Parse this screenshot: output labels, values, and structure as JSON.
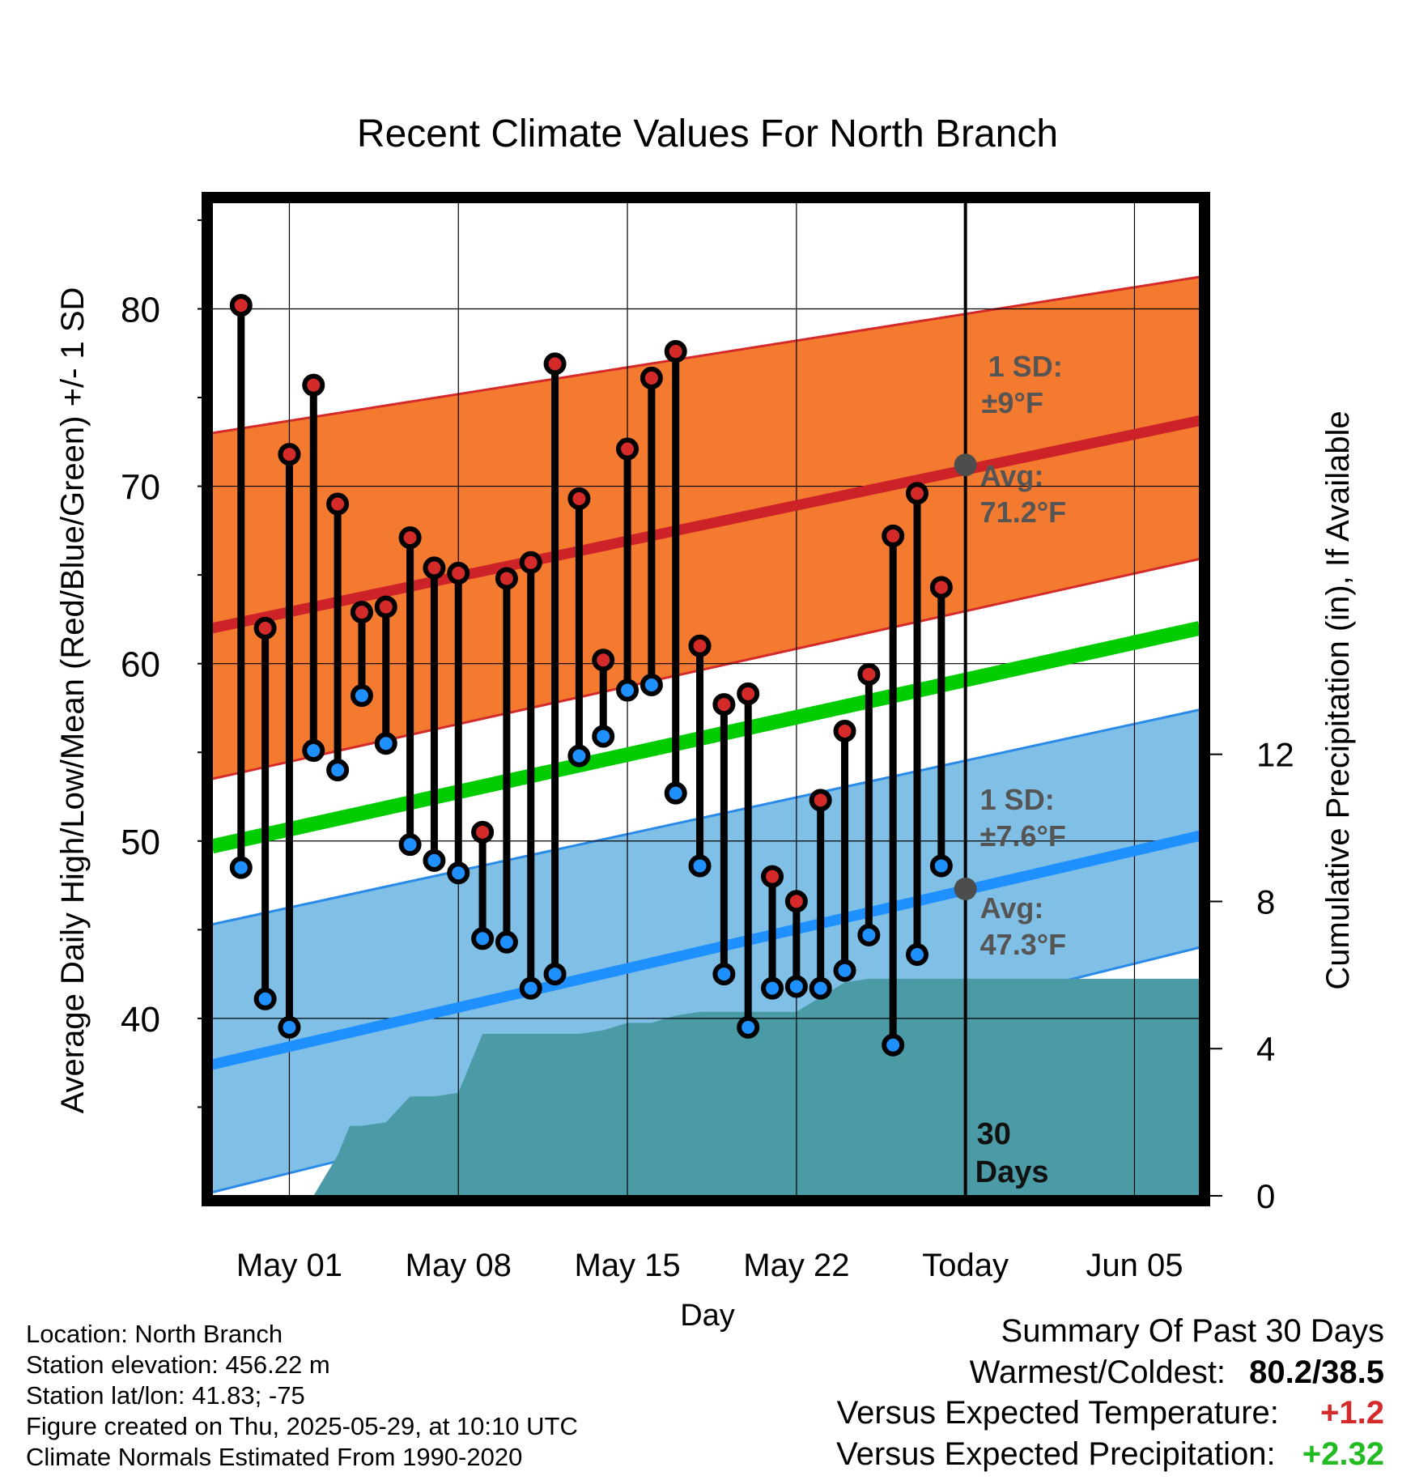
{
  "chart_data": {
    "type": "line",
    "title": "Recent Climate Values For North Branch",
    "xlabel": "Day",
    "ylabel": "Average Daily High/Low/Mean (Red/Blue/Green) +/- 1 SD",
    "y2label": "Cumulative Precipitation (in), If Available",
    "x_ticks": [
      {
        "day": 1,
        "label": "May 01"
      },
      {
        "day": 8,
        "label": "May 08"
      },
      {
        "day": 15,
        "label": "May 15"
      },
      {
        "day": 22,
        "label": "May 22"
      },
      {
        "day": 29,
        "label": "Today"
      },
      {
        "day": 36,
        "label": "Jun 05"
      }
    ],
    "xlim": [
      -2.2,
      38.7
    ],
    "ylim": [
      30,
      86
    ],
    "y_ticks": [
      40,
      50,
      60,
      70,
      80
    ],
    "y2lim": [
      0,
      27
    ],
    "y2_ticks": [
      0,
      4,
      8,
      12
    ],
    "grid": true,
    "days": [
      -1,
      0,
      1,
      2,
      3,
      4,
      5,
      6,
      7,
      8,
      9,
      10,
      11,
      12,
      13,
      14,
      15,
      16,
      17,
      18,
      19,
      20,
      21,
      22,
      23,
      24,
      25,
      26,
      27,
      28
    ],
    "observed_high": [
      80.2,
      62.0,
      71.8,
      75.7,
      69.0,
      62.9,
      63.2,
      67.1,
      65.4,
      65.1,
      50.5,
      64.8,
      65.7,
      76.9,
      69.3,
      60.2,
      72.1,
      76.1,
      77.6,
      61.0,
      57.7,
      58.3,
      48.0,
      46.6,
      52.3,
      56.2,
      59.4,
      67.2,
      69.6,
      64.3
    ],
    "observed_low": [
      48.5,
      41.1,
      39.5,
      55.1,
      54.0,
      58.2,
      55.5,
      49.8,
      48.9,
      48.2,
      44.5,
      44.3,
      41.7,
      42.5,
      54.8,
      55.9,
      58.5,
      58.8,
      52.7,
      48.6,
      42.5,
      39.5,
      41.7,
      41.8,
      41.7,
      42.7,
      44.7,
      38.5,
      43.6,
      48.6
    ],
    "normal_high": {
      "x": [
        -2.2,
        38.7
      ],
      "values": [
        62.0,
        73.7
      ]
    },
    "normal_high_band": {
      "x": [
        -2.2,
        38.7
      ],
      "upper": [
        73.0,
        81.8
      ],
      "lower": [
        53.5,
        65.9
      ]
    },
    "normal_mean": {
      "x": [
        -2.2,
        38.7
      ],
      "values": [
        49.7,
        62.0
      ]
    },
    "normal_low": {
      "x": [
        -2.2,
        38.7
      ],
      "values": [
        37.4,
        50.3
      ]
    },
    "normal_low_band": {
      "x": [
        -2.2,
        38.7
      ],
      "upper": [
        45.3,
        57.4
      ],
      "lower": [
        30.2,
        44.0
      ]
    },
    "precip_cumulative": {
      "x": [
        -2.2,
        2.0,
        3.0,
        3.5,
        4.0,
        5.0,
        6.0,
        7.0,
        8.0,
        9.0,
        10.0,
        11.0,
        12.0,
        13.0,
        14.0,
        15.0,
        16.0,
        17.0,
        18.0,
        19.0,
        20.0,
        21.0,
        22.0,
        23.0,
        24.0,
        25.0,
        26.0,
        27.0,
        28.0,
        29.0,
        38.7
      ],
      "values": [
        0.0,
        0.0,
        1.1,
        1.9,
        1.9,
        2.0,
        2.7,
        2.7,
        2.8,
        4.4,
        4.4,
        4.4,
        4.4,
        4.4,
        4.5,
        4.7,
        4.7,
        4.9,
        5.0,
        5.0,
        5.0,
        5.0,
        5.0,
        5.4,
        5.8,
        5.9,
        5.9,
        5.9,
        5.9,
        5.9,
        5.9
      ]
    },
    "annotations": {
      "high_sd": "1 SD:",
      "high_sd_value": "±9°F",
      "high_avg": "Avg:",
      "high_avg_value": "71.2°F",
      "high_avg_y": 71.2,
      "low_sd": "1 SD:",
      "low_sd_value": "±7.6°F",
      "low_avg": "Avg:",
      "low_avg_value": "47.3°F",
      "low_avg_y": 47.3,
      "period_line1": "30",
      "period_line2": "Days"
    },
    "colors": {
      "high_band": "#f47a30",
      "high_band_edge": "#d42a2a",
      "high_line": "#cc2228",
      "mean_line": "#00cc00",
      "low_band": "#80c0e6",
      "low_band_edge": "#2a8ae8",
      "low_line": "#1e90ff",
      "precip": "#4a9ba6",
      "high_marker": "#d42a2a",
      "low_marker": "#1e90ff",
      "annotation": "#555555",
      "positive_temp": "#d42a2a",
      "positive_precip": "#22bb22"
    }
  },
  "info": {
    "location": "Location: North Branch",
    "elevation": "Station elevation: 456.22 m",
    "latlon": "Station lat/lon: 41.83; -75",
    "created": "Figure created on Thu, 2025-05-29, at 10:10 UTC",
    "normals": "Climate Normals Estimated From 1990-2020"
  },
  "summary": {
    "heading": "Summary Of Past 30 Days",
    "warm_cold_label": "Warmest/Coldest:",
    "warm_cold_value": "80.2/38.5",
    "temp_label": "Versus Expected Temperature:",
    "temp_value": "+1.2",
    "precip_label": "Versus Expected Precipitation:",
    "precip_value": "+2.32"
  }
}
